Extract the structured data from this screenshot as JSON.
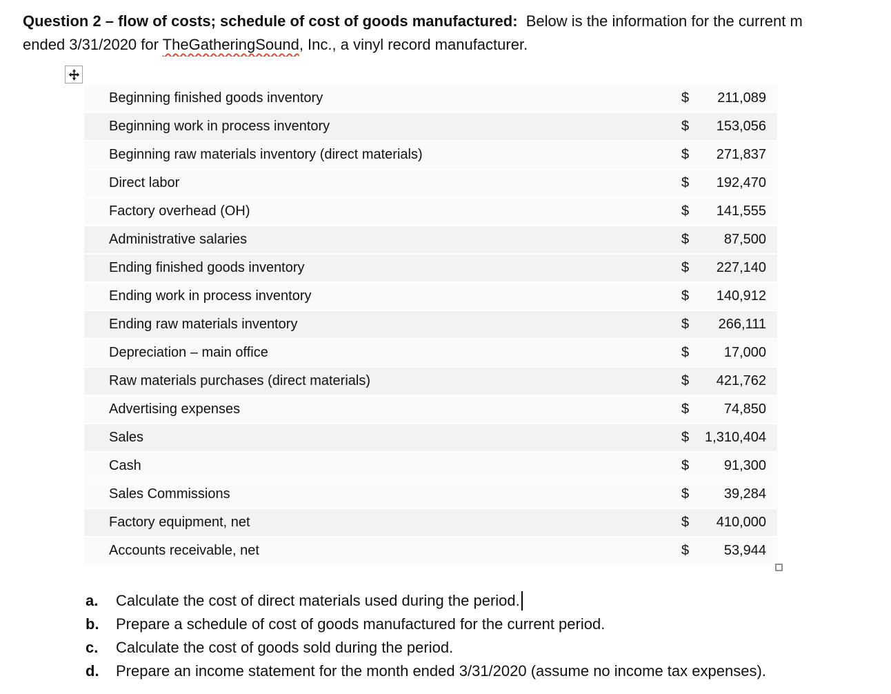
{
  "header": {
    "title_bold": "Question 2 – flow of costs; schedule of cost of goods manufactured:",
    "title_rest": "  Below is the information for the current m",
    "line2_prefix": "ended 3/31/2020 for ",
    "company": "TheGatheringSound",
    "line2_suffix": ", Inc., a vinyl record manufacturer."
  },
  "icons": {
    "move_handle": "four-way-move-arrow",
    "resize_handle": "small-square"
  },
  "table": {
    "currency_symbol": "$",
    "rows": [
      {
        "label": "Beginning finished goods inventory",
        "amount": "211,089",
        "shaded": false
      },
      {
        "label": "Beginning work in process inventory",
        "amount": "153,056",
        "shaded": true
      },
      {
        "label": "Beginning raw materials inventory (direct materials)",
        "amount": "271,837",
        "shaded": false
      },
      {
        "label": "Direct labor",
        "amount": "192,470",
        "shaded": false
      },
      {
        "label": "Factory overhead (OH)",
        "amount": "141,555",
        "shaded": false
      },
      {
        "label": "Administrative salaries",
        "amount": "87,500",
        "shaded": true
      },
      {
        "label": "Ending finished goods inventory",
        "amount": "227,140",
        "shaded": true
      },
      {
        "label": "Ending work in process inventory",
        "amount": "140,912",
        "shaded": false
      },
      {
        "label": "Ending raw materials inventory",
        "amount": "266,111",
        "shaded": true
      },
      {
        "label": "Depreciation – main office",
        "amount": "17,000",
        "shaded": false
      },
      {
        "label": "Raw materials purchases (direct materials)",
        "amount": "421,762",
        "shaded": true
      },
      {
        "label": "Advertising expenses",
        "amount": "74,850",
        "shaded": false
      },
      {
        "label": "Sales",
        "amount": "1,310,404",
        "shaded": true
      },
      {
        "label": "Cash",
        "amount": "91,300",
        "shaded": false
      },
      {
        "label": "Sales Commissions",
        "amount": "39,284",
        "shaded": false
      },
      {
        "label": "Factory equipment, net",
        "amount": "410,000",
        "shaded": true
      },
      {
        "label": "Accounts receivable, net",
        "amount": "53,944",
        "shaded": false
      }
    ]
  },
  "questions": {
    "items": [
      {
        "marker": "a.",
        "text": "Calculate the cost of direct materials used during the period.",
        "caret": true
      },
      {
        "marker": "b.",
        "text": "Prepare a schedule of cost of goods manufactured for the current period.",
        "caret": false
      },
      {
        "marker": "c.",
        "text": "Calculate the cost of goods sold during the period.",
        "caret": false
      },
      {
        "marker": "d.",
        "text": "Prepare an income statement for the month ended 3/31/2020 (assume no income tax expenses).",
        "caret": false
      }
    ]
  },
  "colors": {
    "row-shaded": "#f2f2f2",
    "row-light": "#fafafa",
    "squiggle": "#dd4a2b",
    "handle-border": "#a0a0a0",
    "text": "#111111",
    "page-bg": "#ffffff"
  }
}
